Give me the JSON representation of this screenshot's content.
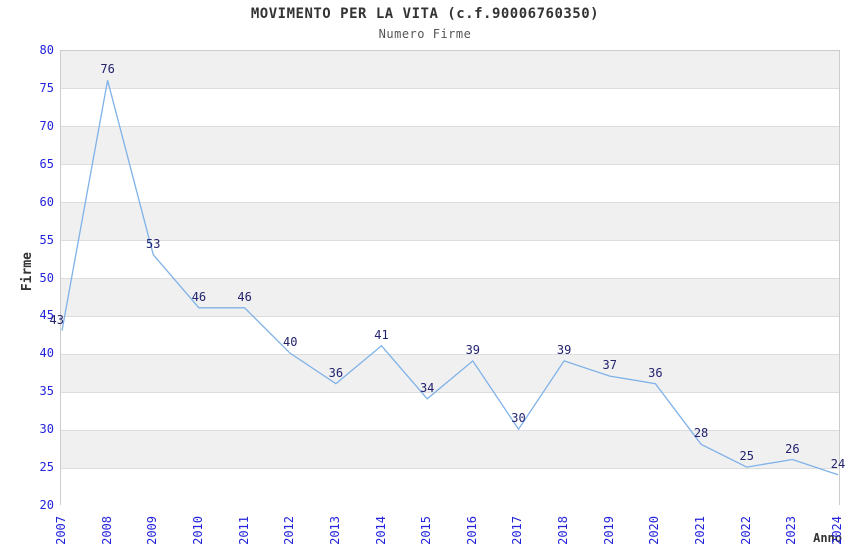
{
  "chart_data": {
    "type": "line",
    "title": "MOVIMENTO PER LA VITA (c.f.90006760350)",
    "subtitle": "Numero Firme",
    "xlabel": "Anno",
    "ylabel": "Firme",
    "categories": [
      "2007",
      "2008",
      "2009",
      "2010",
      "2011",
      "2012",
      "2013",
      "2014",
      "2015",
      "2016",
      "2017",
      "2018",
      "2019",
      "2020",
      "2021",
      "2022",
      "2023",
      "2024"
    ],
    "values": [
      43,
      76,
      53,
      46,
      46,
      40,
      36,
      41,
      34,
      39,
      30,
      39,
      37,
      36,
      28,
      25,
      26,
      24
    ],
    "ylim": [
      20,
      80
    ],
    "ytick_step": 5,
    "grid": "horizontal-bands",
    "legend": "none",
    "data_labels": true,
    "colors": {
      "line": "#7FB2E8",
      "tick_label": "#2323DC",
      "data_label": "#22226E",
      "band": "#F0F0F0",
      "band_alt": "#FFFFFF",
      "gridline": "#DDDDDD",
      "plot_border": "#CCCCCC",
      "title": "#333333",
      "subtitle": "#555555",
      "axis_title": "#333333"
    }
  }
}
